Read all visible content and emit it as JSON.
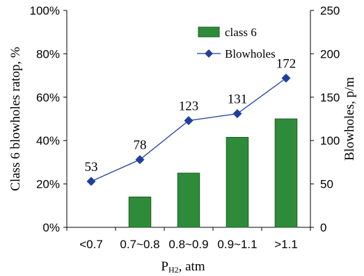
{
  "chart_data": {
    "type": "bar",
    "categories": [
      "<0.7",
      "0.7~0.8",
      "0.8~0.9",
      "0.9~1.1",
      ">1.1"
    ],
    "xlabel_main": "P",
    "xlabel_sub": "H2",
    "xlabel_rest": ", atm",
    "ylabel_left": "Class 6 blowholes ratop, %",
    "ylabel_right": "Blowholes, p/m",
    "y_left": {
      "range": [
        0,
        100
      ],
      "ticks": [
        0,
        20,
        40,
        60,
        80,
        100
      ],
      "tick_labels": [
        "0%",
        "20%",
        "40%",
        "60%",
        "80%",
        "100%"
      ]
    },
    "y_right": {
      "range": [
        0,
        250
      ],
      "ticks": [
        0,
        50,
        100,
        150,
        200,
        250
      ],
      "tick_labels": [
        "0",
        "50",
        "100",
        "150",
        "200",
        "250"
      ]
    },
    "series": [
      {
        "name": "class 6",
        "kind": "bar",
        "axis": "left",
        "color": "#2e8b3a",
        "values": [
          0,
          14,
          25,
          41.5,
          50
        ]
      },
      {
        "name": "Blowholes",
        "kind": "line",
        "axis": "right",
        "color": "#1f3f9e",
        "marker": "diamond",
        "values": [
          53,
          78,
          123,
          131,
          172
        ],
        "data_labels": [
          "53",
          "78",
          "123",
          "131",
          "172"
        ]
      }
    ],
    "legend_position": "top-right",
    "grid": false
  }
}
